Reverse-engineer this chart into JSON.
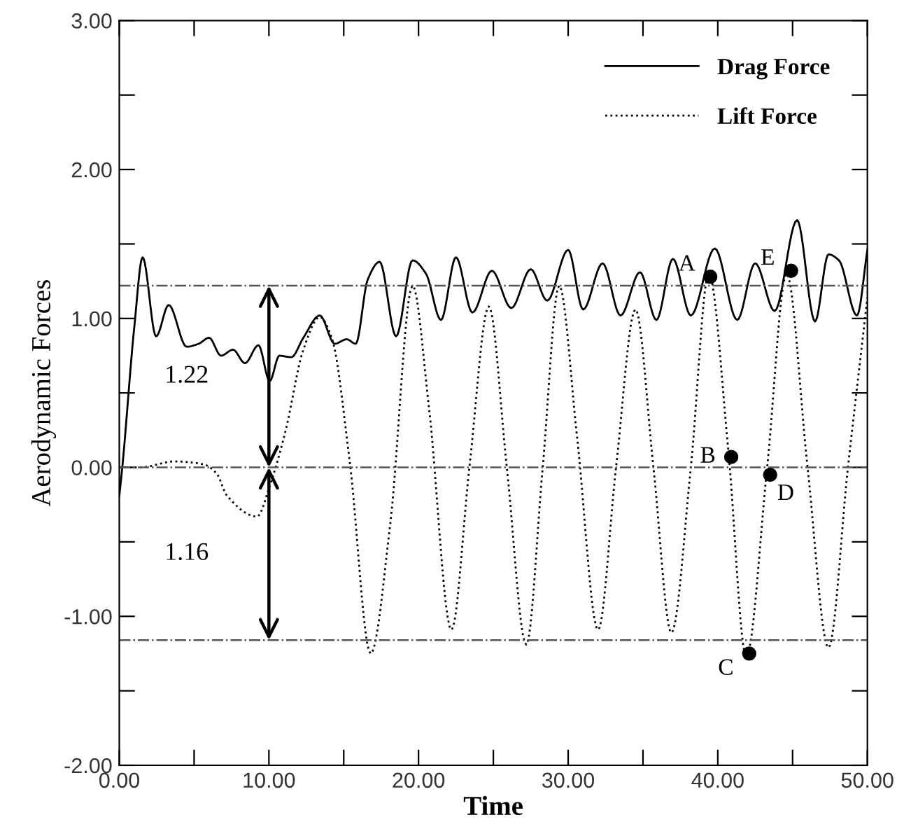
{
  "chart_data": {
    "type": "line",
    "xlabel": "Time",
    "ylabel": "Aerodynamic Forces",
    "xlim": [
      0,
      50
    ],
    "ylim": [
      -2,
      3
    ],
    "xticks": [
      {
        "value": 0,
        "label": "0.00"
      },
      {
        "value": 5,
        "label": null
      },
      {
        "value": 10,
        "label": "10.00"
      },
      {
        "value": 15,
        "label": null
      },
      {
        "value": 20,
        "label": "20.00"
      },
      {
        "value": 25,
        "label": null
      },
      {
        "value": 30,
        "label": "30.00"
      },
      {
        "value": 35,
        "label": null
      },
      {
        "value": 40,
        "label": "40.00"
      },
      {
        "value": 45,
        "label": null
      },
      {
        "value": 50,
        "label": "50.00"
      }
    ],
    "yticks": [
      {
        "value": -2,
        "label": "-2.00"
      },
      {
        "value": -1.5,
        "label": null
      },
      {
        "value": -1,
        "label": "-1.00"
      },
      {
        "value": -0.5,
        "label": null
      },
      {
        "value": 0,
        "label": "0.00"
      },
      {
        "value": 0.5,
        "label": null
      },
      {
        "value": 1,
        "label": "1.00"
      },
      {
        "value": 1.5,
        "label": null
      },
      {
        "value": 2,
        "label": "2.00"
      },
      {
        "value": 2.5,
        "label": null
      },
      {
        "value": 3,
        "label": "3.00"
      }
    ],
    "grid": false,
    "legend": "top right",
    "series": [
      {
        "name": "Drag Force",
        "color": "#000000",
        "line_style": "solid",
        "marker": "none",
        "x": [
          0,
          0.2,
          1,
          1.56,
          2.46,
          3.3,
          4.5,
          5.3,
          6.0,
          6.8,
          7.6,
          8.4,
          9.3,
          10.05,
          10.7,
          11.5,
          12.3,
          13.4,
          14.4,
          15.2,
          15.8,
          16.6,
          17.4,
          18.5,
          19.6,
          20.5,
          21.5,
          22.5,
          23.6,
          24.9,
          26.2,
          27.5,
          28.6,
          30.0,
          31.0,
          32.3,
          33.5,
          34.8,
          35.9,
          37.0,
          38.2,
          39.8,
          41.3,
          42.5,
          43.8,
          45.3,
          46.5,
          47.4,
          48.1,
          49.3,
          50
        ],
        "values": [
          -0.19,
          0,
          0.94,
          1.41,
          0.88,
          1.09,
          0.81,
          0.83,
          0.87,
          0.75,
          0.79,
          0.7,
          0.82,
          0.58,
          0.75,
          0.74,
          0.87,
          1.02,
          0.83,
          0.86,
          0.83,
          1.26,
          1.38,
          0.88,
          1.39,
          1.3,
          0.99,
          1.41,
          1.04,
          1.32,
          1.07,
          1.33,
          1.12,
          1.46,
          1.06,
          1.37,
          1.02,
          1.31,
          0.99,
          1.4,
          1.02,
          1.47,
          0.99,
          1.37,
          1.05,
          1.66,
          0.98,
          1.43,
          1.39,
          1.02,
          1.46
        ]
      },
      {
        "name": "Lift Force",
        "color": "#000000",
        "line_style": "dotted",
        "marker": "none",
        "x": [
          0,
          1.4,
          3.7,
          5.65,
          6.5,
          7.2,
          9.2,
          10.1,
          11.1,
          12.3,
          13.4,
          14.2,
          15.4,
          16.8,
          18.1,
          19.6,
          20.7,
          22.2,
          23.4,
          24.7,
          25.9,
          27.2,
          28.3,
          29.4,
          30.6,
          32.0,
          33.2,
          34.5,
          35.7,
          36.9,
          38.2,
          39.4,
          40.7,
          41.9,
          43.3,
          44.6,
          46.0,
          47.4,
          48.7,
          50
        ],
        "values": [
          0,
          0,
          0.04,
          0.02,
          -0.04,
          -0.19,
          -0.33,
          -0.11,
          0.24,
          0.79,
          1.01,
          0.87,
          0.04,
          -1.25,
          -0.39,
          1.22,
          0.4,
          -1.09,
          0,
          1.08,
          0,
          -1.19,
          0,
          1.22,
          0.2,
          -1.09,
          0,
          1.06,
          0,
          -1.11,
          0,
          1.3,
          0.12,
          -1.27,
          0,
          1.3,
          0,
          -1.21,
          0,
          1.14
        ]
      },
      {
        "type": "scatter",
        "color": "#000000",
        "marker": "circle",
        "x": [
          39.5,
          40.9,
          42.1,
          43.5,
          44.9
        ],
        "values": [
          1.28,
          0.07,
          -1.25,
          -0.05,
          1.32
        ]
      }
    ],
    "ref_lines": [
      {
        "axis": "y",
        "value": 1.22,
        "color": "#555555",
        "line_style": "dashdot"
      },
      {
        "axis": "y",
        "value": 0,
        "color": "#555555",
        "line_style": "dashdot"
      },
      {
        "axis": "y",
        "value": -1.16,
        "color": "#555555",
        "line_style": "dashdot"
      }
    ],
    "annotations": [
      "1.22",
      "1.16",
      {
        "text": "A",
        "x": 39.5,
        "y": 1.28
      },
      {
        "text": "B",
        "x": 40.9,
        "y": 0.07
      },
      {
        "text": "C",
        "x": 42.1,
        "y": -1.25
      },
      {
        "text": "D",
        "x": 43.5,
        "y": -0.05
      },
      {
        "text": "E",
        "x": 44.9,
        "y": 1.32
      }
    ]
  }
}
